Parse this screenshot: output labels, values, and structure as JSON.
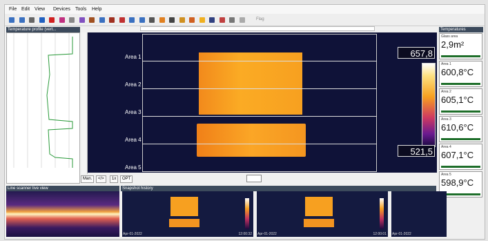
{
  "menu": [
    "File",
    "Edit",
    "View",
    "Devices",
    "Tools",
    "Help"
  ],
  "toolbar": {
    "flag": "Flag"
  },
  "panels": {
    "profile": "Temperature profile (vert...",
    "scanner": "Line scanner live view",
    "snapshot": "Snapshot history",
    "temperatures": "Temperatures"
  },
  "thermal": {
    "areas": [
      "Area 1",
      "Area 2",
      "Area 3",
      "Area 4",
      "Area 5"
    ],
    "max": "657,8",
    "min": "521,5"
  },
  "controls": [
    "Man.",
    "</>",
    "1x",
    "OPT"
  ],
  "temperatures": {
    "glass": {
      "label": "Glass area",
      "value": "2,9m²"
    },
    "areas": [
      {
        "label": "Area 1",
        "value": "600,8°C"
      },
      {
        "label": "Area 2",
        "value": "605,1°C"
      },
      {
        "label": "Area 3",
        "value": "610,6°C"
      },
      {
        "label": "Area 4",
        "value": "607,1°C"
      },
      {
        "label": "Area 5",
        "value": "598,9°C"
      }
    ]
  },
  "snapshots": [
    {
      "date": "Apr-01-2022",
      "time": "12:00:32"
    },
    {
      "date": "Apr-01-2022",
      "time": "12:00:01"
    },
    {
      "date": "Apr-01-2022"
    }
  ]
}
